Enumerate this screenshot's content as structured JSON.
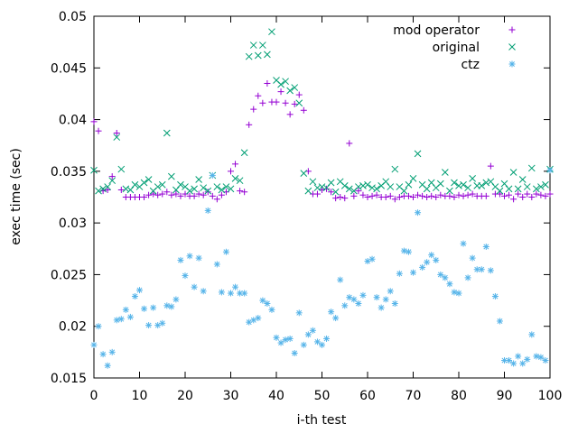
{
  "chart_data": {
    "type": "scatter",
    "title": "",
    "xlabel": "i-th test",
    "ylabel": "exec time (sec)",
    "xlim": [
      0,
      100
    ],
    "ylim": [
      0.015,
      0.05
    ],
    "xticks": [
      0,
      10,
      20,
      30,
      40,
      50,
      60,
      70,
      80,
      90,
      100
    ],
    "yticks": [
      0.015,
      0.02,
      0.025,
      0.03,
      0.035,
      0.04,
      0.045,
      0.05
    ],
    "xtick_labels": [
      "0",
      "10",
      "20",
      "30",
      "40",
      "50",
      "60",
      "70",
      "80",
      "90",
      "100"
    ],
    "ytick_labels": [
      "0.015",
      "0.02",
      "0.025",
      "0.03",
      "0.035",
      "0.04",
      "0.045",
      "0.05"
    ],
    "grid": false,
    "legend_position": "top-right",
    "series": [
      {
        "name": "mod operator",
        "marker": "plus",
        "color": "#9400d3",
        "x": [
          0,
          1,
          2,
          3,
          4,
          5,
          6,
          7,
          8,
          9,
          10,
          11,
          12,
          13,
          14,
          15,
          16,
          17,
          18,
          19,
          20,
          21,
          22,
          23,
          24,
          25,
          26,
          27,
          28,
          29,
          30,
          31,
          32,
          33,
          34,
          35,
          36,
          37,
          38,
          39,
          40,
          41,
          42,
          43,
          44,
          45,
          46,
          47,
          48,
          49,
          50,
          51,
          52,
          53,
          54,
          55,
          56,
          57,
          58,
          59,
          60,
          61,
          62,
          63,
          64,
          65,
          66,
          67,
          68,
          69,
          70,
          71,
          72,
          73,
          74,
          75,
          76,
          77,
          78,
          79,
          80,
          81,
          82,
          83,
          84,
          85,
          86,
          87,
          88,
          89,
          90,
          91,
          92,
          93,
          94,
          95,
          96,
          97,
          98,
          99,
          100
        ],
        "y": [
          0.0398,
          0.0389,
          0.0331,
          0.0332,
          0.0345,
          0.0387,
          0.0332,
          0.0325,
          0.0325,
          0.0325,
          0.0325,
          0.0325,
          0.0327,
          0.0328,
          0.0327,
          0.0328,
          0.033,
          0.0327,
          0.0328,
          0.0326,
          0.0328,
          0.0326,
          0.0326,
          0.0328,
          0.0327,
          0.033,
          0.0326,
          0.0323,
          0.0327,
          0.033,
          0.035,
          0.0357,
          0.0331,
          0.033,
          0.0395,
          0.041,
          0.0423,
          0.0416,
          0.0435,
          0.0417,
          0.0417,
          0.0427,
          0.0416,
          0.0405,
          0.0415,
          0.0424,
          0.0409,
          0.035,
          0.0328,
          0.0328,
          0.0332,
          0.0333,
          0.033,
          0.0324,
          0.0325,
          0.0324,
          0.0377,
          0.0326,
          0.0331,
          0.0327,
          0.0325,
          0.0326,
          0.0327,
          0.0325,
          0.0325,
          0.0326,
          0.0323,
          0.0325,
          0.0326,
          0.0326,
          0.0325,
          0.0327,
          0.0326,
          0.0325,
          0.0326,
          0.0325,
          0.0327,
          0.0326,
          0.0326,
          0.0325,
          0.0327,
          0.0326,
          0.0327,
          0.0328,
          0.0326,
          0.0326,
          0.0326,
          0.0355,
          0.0328,
          0.0328,
          0.0326,
          0.0327,
          0.0323,
          0.0328,
          0.0325,
          0.0328,
          0.0325,
          0.0328,
          0.0327,
          0.0326,
          0.0328
        ]
      },
      {
        "name": "original",
        "marker": "cross",
        "color": "#009e73",
        "x": [
          0,
          1,
          2,
          3,
          4,
          5,
          6,
          7,
          8,
          9,
          10,
          11,
          12,
          13,
          14,
          15,
          16,
          17,
          18,
          19,
          20,
          21,
          22,
          23,
          24,
          25,
          26,
          27,
          28,
          29,
          30,
          31,
          32,
          33,
          34,
          35,
          36,
          37,
          38,
          39,
          40,
          41,
          42,
          43,
          44,
          45,
          46,
          47,
          48,
          49,
          50,
          51,
          52,
          53,
          54,
          55,
          56,
          57,
          58,
          59,
          60,
          61,
          62,
          63,
          64,
          65,
          66,
          67,
          68,
          69,
          70,
          71,
          72,
          73,
          74,
          75,
          76,
          77,
          78,
          79,
          80,
          81,
          82,
          83,
          84,
          85,
          86,
          87,
          88,
          89,
          90,
          91,
          92,
          93,
          94,
          95,
          96,
          97,
          98,
          99,
          100
        ],
        "y": [
          0.0351,
          0.0331,
          0.0333,
          0.0335,
          0.0341,
          0.0383,
          0.0352,
          0.0333,
          0.0332,
          0.0337,
          0.0335,
          0.0339,
          0.0342,
          0.0331,
          0.0335,
          0.0337,
          0.0387,
          0.0345,
          0.0332,
          0.0337,
          0.0335,
          0.0331,
          0.0333,
          0.0342,
          0.0334,
          0.0331,
          0.0346,
          0.0335,
          0.0332,
          0.0335,
          0.0333,
          0.0343,
          0.0341,
          0.0368,
          0.0461,
          0.0472,
          0.0462,
          0.0472,
          0.0463,
          0.0485,
          0.0438,
          0.0434,
          0.0437,
          0.0428,
          0.0431,
          0.0416,
          0.0348,
          0.0331,
          0.034,
          0.0334,
          0.0335,
          0.0334,
          0.0339,
          0.033,
          0.034,
          0.0336,
          0.0333,
          0.0331,
          0.0335,
          0.0336,
          0.0337,
          0.0334,
          0.0333,
          0.0336,
          0.034,
          0.0335,
          0.0352,
          0.0335,
          0.0331,
          0.0337,
          0.0343,
          0.0367,
          0.0337,
          0.0333,
          0.0339,
          0.0334,
          0.0338,
          0.0349,
          0.0331,
          0.0339,
          0.0336,
          0.0337,
          0.0334,
          0.0343,
          0.0336,
          0.0336,
          0.0339,
          0.034,
          0.0335,
          0.0331,
          0.0338,
          0.0333,
          0.0349,
          0.0333,
          0.0342,
          0.0335,
          0.0353,
          0.0333,
          0.0335,
          0.0337,
          0.0352
        ]
      },
      {
        "name": "ctz",
        "marker": "star",
        "color": "#56b4e9",
        "x": [
          0,
          1,
          2,
          3,
          4,
          5,
          6,
          7,
          8,
          9,
          10,
          11,
          12,
          13,
          14,
          15,
          16,
          17,
          18,
          19,
          20,
          21,
          22,
          23,
          24,
          25,
          26,
          27,
          28,
          29,
          30,
          31,
          32,
          33,
          34,
          35,
          36,
          37,
          38,
          39,
          40,
          41,
          42,
          43,
          44,
          45,
          46,
          47,
          48,
          49,
          50,
          51,
          52,
          53,
          54,
          55,
          56,
          57,
          58,
          59,
          60,
          61,
          62,
          63,
          64,
          65,
          66,
          67,
          68,
          69,
          70,
          71,
          72,
          73,
          74,
          75,
          76,
          77,
          78,
          79,
          80,
          81,
          82,
          83,
          84,
          85,
          86,
          87,
          88,
          89,
          90,
          91,
          92,
          93,
          94,
          95,
          96,
          97,
          98,
          99,
          100
        ],
        "y": [
          0.0182,
          0.02,
          0.0173,
          0.0162,
          0.0175,
          0.0206,
          0.0207,
          0.0216,
          0.0209,
          0.0229,
          0.0235,
          0.0217,
          0.0201,
          0.0218,
          0.0201,
          0.0203,
          0.022,
          0.0219,
          0.0226,
          0.0264,
          0.0249,
          0.0268,
          0.0238,
          0.0266,
          0.0234,
          0.0312,
          0.0346,
          0.026,
          0.0233,
          0.0272,
          0.0232,
          0.0238,
          0.0232,
          0.0232,
          0.0204,
          0.0206,
          0.0208,
          0.0225,
          0.0222,
          0.0216,
          0.0189,
          0.0184,
          0.0187,
          0.0188,
          0.0174,
          0.0213,
          0.0182,
          0.0192,
          0.0196,
          0.0185,
          0.0182,
          0.0188,
          0.0214,
          0.0208,
          0.0245,
          0.022,
          0.0228,
          0.0226,
          0.0222,
          0.023,
          0.0263,
          0.0265,
          0.0228,
          0.0218,
          0.0226,
          0.0234,
          0.0222,
          0.0251,
          0.0273,
          0.0272,
          0.0252,
          0.031,
          0.0257,
          0.0262,
          0.0269,
          0.0264,
          0.025,
          0.0247,
          0.0241,
          0.0233,
          0.0232,
          0.028,
          0.0247,
          0.0266,
          0.0255,
          0.0255,
          0.0277,
          0.0254,
          0.0229,
          0.0205,
          0.0167,
          0.0167,
          0.0164,
          0.0171,
          0.0164,
          0.0168,
          0.0192,
          0.0171,
          0.017,
          0.0167,
          0.0351
        ]
      }
    ]
  }
}
